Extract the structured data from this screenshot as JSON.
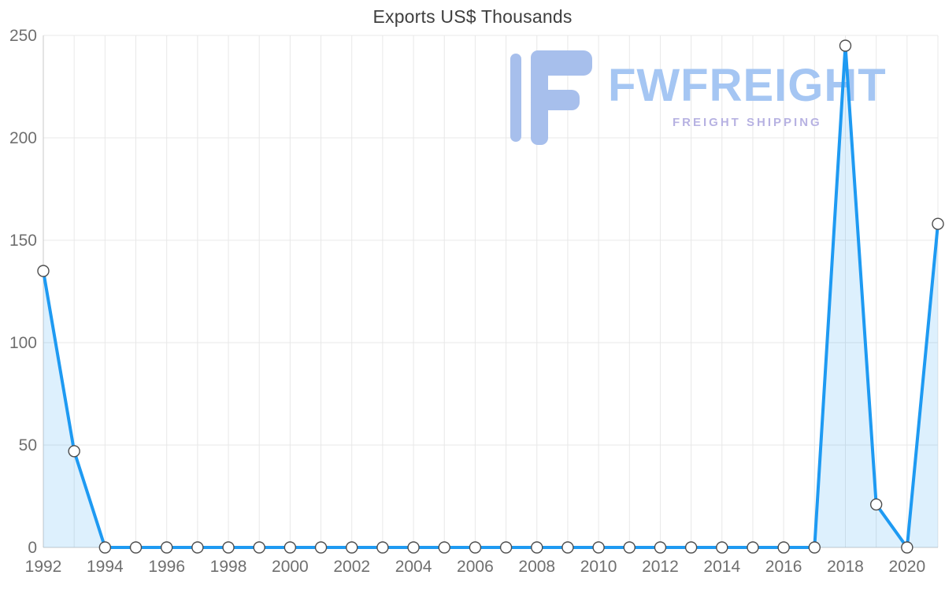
{
  "page": {
    "background": "#ffffff"
  },
  "watermark": {
    "brand": "FWFREIGHT",
    "tagline": "FREIGHT SHIPPING",
    "logo_icon": "fwfreight-f-logo",
    "brand_color": "#a5c6f3",
    "tagline_color": "#b7b2e2",
    "logo_color": "#a7bfec"
  },
  "chart_data": {
    "type": "area",
    "title": "Exports US$ Thousands",
    "xlabel": "",
    "ylabel": "Exports US$ Thousands",
    "x": [
      1992,
      1993,
      1994,
      1995,
      1996,
      1997,
      1998,
      1999,
      2000,
      2001,
      2002,
      2003,
      2004,
      2005,
      2006,
      2007,
      2008,
      2009,
      2010,
      2011,
      2012,
      2013,
      2014,
      2015,
      2016,
      2017,
      2018,
      2019,
      2020,
      2021
    ],
    "series": [
      {
        "name": "Exports US$ Thousands",
        "values": [
          135,
          47,
          0,
          0,
          0,
          0,
          0,
          0,
          0,
          0,
          0,
          0,
          0,
          0,
          0,
          0,
          0,
          0,
          0,
          0,
          0,
          0,
          0,
          0,
          0,
          0,
          245,
          21,
          0,
          158
        ]
      }
    ],
    "ylim": [
      0,
      250
    ],
    "yticks": [
      0,
      50,
      100,
      150,
      200,
      250
    ],
    "xtick_labels": [
      "1992",
      "1994",
      "1996",
      "1998",
      "2000",
      "2002",
      "2004",
      "2006",
      "2008",
      "2010",
      "2012",
      "2014",
      "2016",
      "2018",
      "2020"
    ],
    "grid": true,
    "legend": "none",
    "line_color": "#1e9af2",
    "area_color": "rgba(30,154,242,0.15)",
    "marker_fill": "#ffffff",
    "marker_stroke": "#4d4d4d",
    "grid_color": "#e8e8e8",
    "axis_color": "#c9c9c9",
    "tick_label_color": "#6f6f6f"
  }
}
